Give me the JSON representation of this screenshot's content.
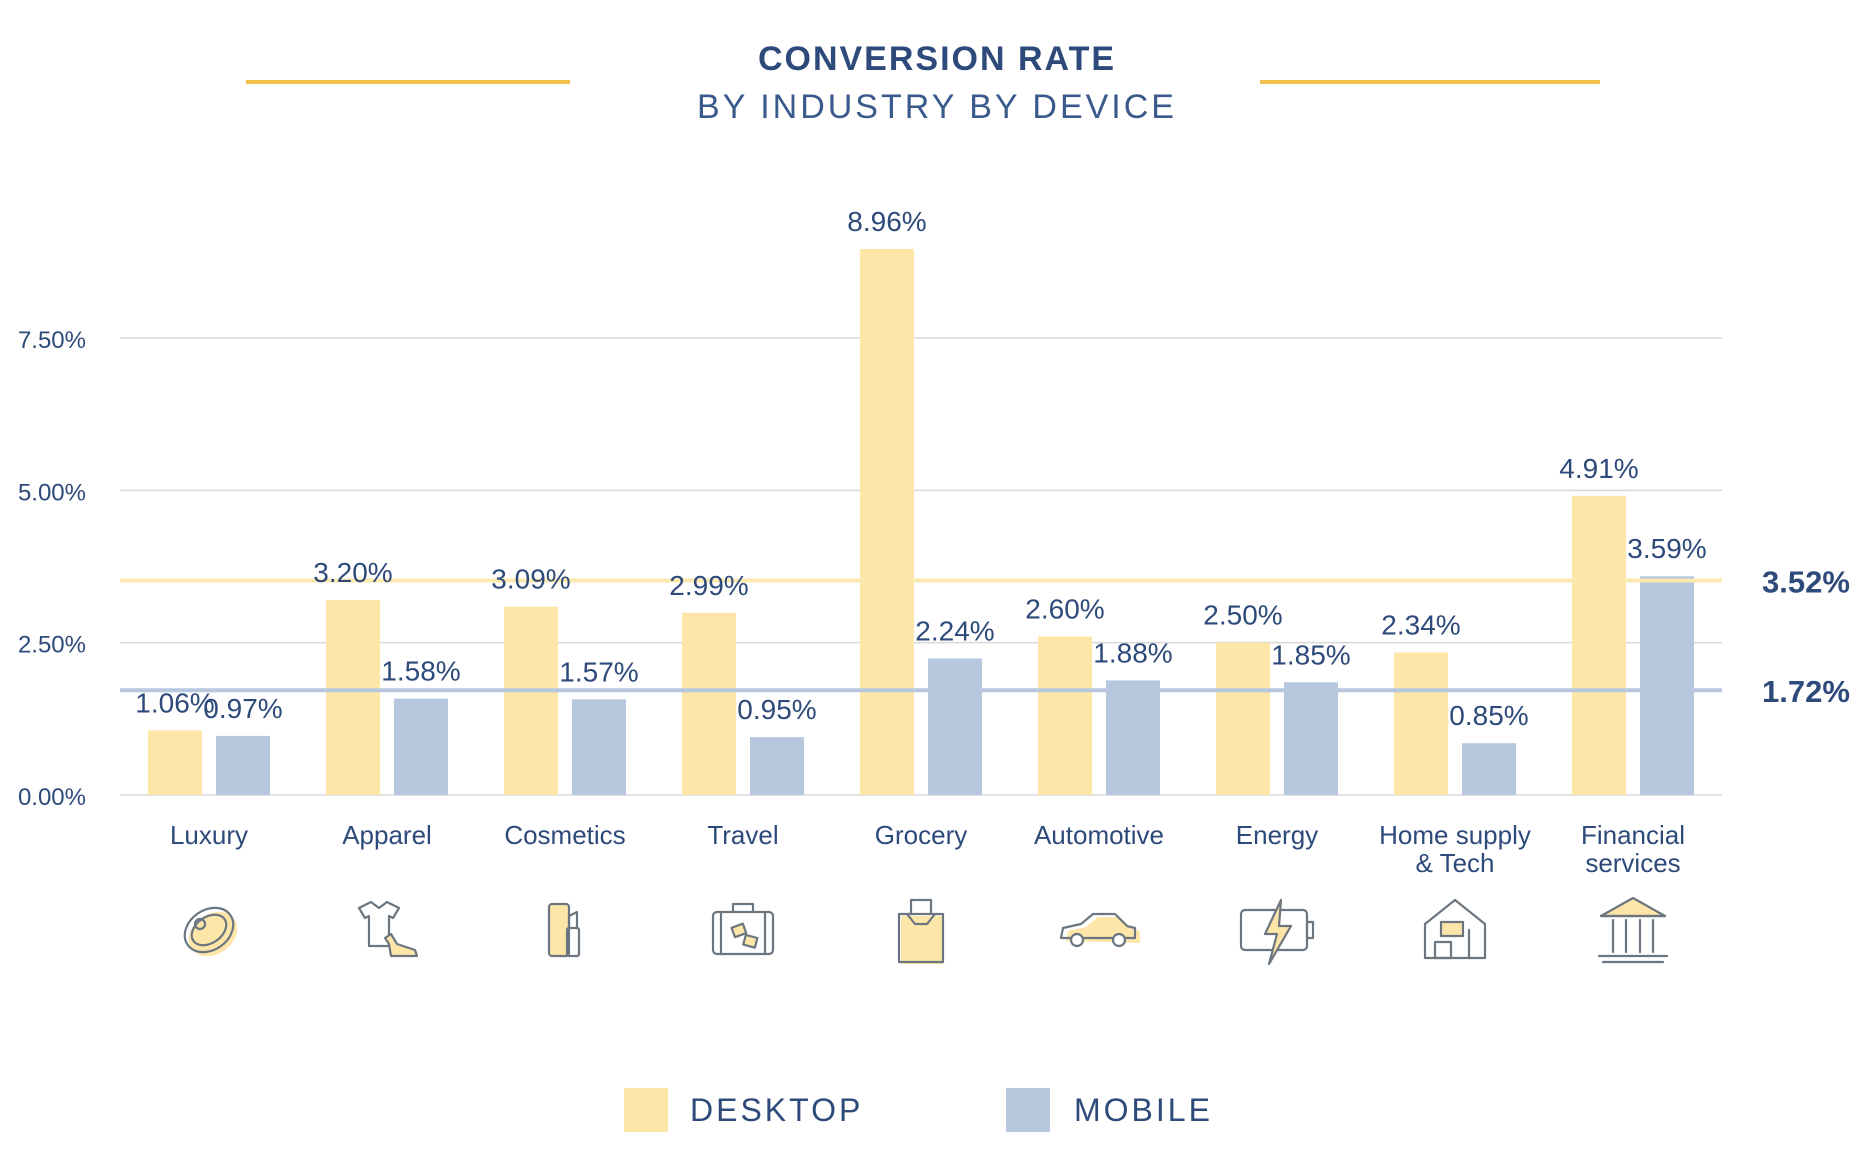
{
  "header": {
    "title": "CONVERSION RATE",
    "subtitle": "BY INDUSTRY BY DEVICE"
  },
  "colors": {
    "desktop": "#fde6a8",
    "mobile": "#b6c7de",
    "desktop_avg_line": "#fbe9b0",
    "mobile_avg_line": "#b6c7de",
    "text": "#2e4a7a",
    "grid": "#d9d9d9",
    "accent": "#f2c14e"
  },
  "legend": {
    "desktop": "DESKTOP",
    "mobile": "MOBILE"
  },
  "chart_data": {
    "type": "bar",
    "title": "CONVERSION RATE",
    "subtitle": "BY INDUSTRY BY DEVICE",
    "categories": [
      "Luxury",
      "Apparel",
      "Cosmetics",
      "Travel",
      "Grocery",
      "Automotive",
      "Energy",
      "Home supply\n& Tech",
      "Financial\nservices"
    ],
    "category_icons": [
      "ring-icon",
      "apparel-icon",
      "cosmetics-icon",
      "luggage-icon",
      "grocery-bag-icon",
      "car-icon",
      "battery-icon",
      "home-tech-icon",
      "bank-icon"
    ],
    "series": [
      {
        "name": "DESKTOP",
        "values": [
          1.06,
          3.2,
          3.09,
          2.99,
          8.96,
          2.6,
          2.5,
          2.34,
          4.91
        ],
        "labels": [
          "1.06%",
          "3.20%",
          "3.09%",
          "2.99%",
          "8.96%",
          "2.60%",
          "2.50%",
          "2.34%",
          "4.91%"
        ]
      },
      {
        "name": "MOBILE",
        "values": [
          0.97,
          1.58,
          1.57,
          0.95,
          2.24,
          1.88,
          1.85,
          0.85,
          3.59
        ],
        "labels": [
          "0.97%",
          "1.58%",
          "1.57%",
          "0.95%",
          "2.24%",
          "1.88%",
          "1.85%",
          "0.85%",
          "3.59%"
        ]
      }
    ],
    "reference_lines": [
      {
        "series": "DESKTOP",
        "value": 3.52,
        "label": "3.52%"
      },
      {
        "series": "MOBILE",
        "value": 1.72,
        "label": "1.72%"
      }
    ],
    "yticks": [
      "0.00%",
      "2.50%",
      "5.00%",
      "7.50%"
    ],
    "ytick_values": [
      0,
      2.5,
      5,
      7.5
    ],
    "ylim": [
      0,
      9.4
    ],
    "grid": true,
    "legend_position": "bottom"
  }
}
